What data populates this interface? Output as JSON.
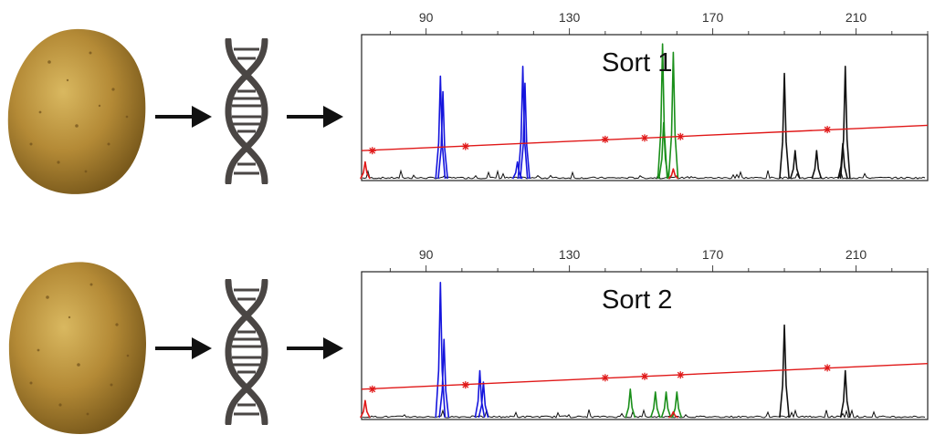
{
  "colors": {
    "blue": "#1515dd",
    "green": "#1a8f1a",
    "black": "#111111",
    "red": "#e01818",
    "ladder": "#e01818",
    "potato_light": "#c9a24a",
    "potato_dark": "#8a6a24",
    "dna": "#4a4644",
    "arrow": "#111111"
  },
  "icons": {
    "potato": "potato-icon",
    "arrow": "arrow-right-icon",
    "dna": "dna-icon"
  },
  "chart_data": [
    {
      "type": "line",
      "title": "Sort 1",
      "x_ticks": [
        90,
        130,
        170,
        210
      ],
      "xlim": [
        72,
        230
      ],
      "ylim": [
        0,
        1
      ],
      "grid": false,
      "peaks": {
        "blue": [
          [
            94,
            0.73
          ],
          [
            94.7,
            0.62
          ],
          [
            117,
            0.8
          ],
          [
            117.6,
            0.68
          ],
          [
            115.5,
            0.12
          ]
        ],
        "green": [
          [
            156,
            0.96
          ],
          [
            159,
            0.9
          ],
          [
            156.3,
            0.4
          ]
        ],
        "black": [
          [
            190,
            0.75
          ],
          [
            193,
            0.2
          ],
          [
            199,
            0.2
          ],
          [
            207,
            0.8
          ],
          [
            206.3,
            0.25
          ]
        ],
        "red": [
          [
            73,
            0.12
          ],
          [
            159,
            0.07
          ]
        ]
      },
      "ladder": {
        "line": [
          [
            72,
            0.2
          ],
          [
            230,
            0.38
          ]
        ],
        "markers": [
          [
            75,
            0.2
          ],
          [
            101,
            0.23
          ],
          [
            140,
            0.28
          ],
          [
            151,
            0.29
          ],
          [
            161,
            0.3
          ],
          [
            202,
            0.35
          ]
        ]
      }
    },
    {
      "type": "line",
      "title": "Sort 2",
      "x_ticks": [
        90,
        130,
        170,
        210
      ],
      "xlim": [
        72,
        230
      ],
      "ylim": [
        0,
        1
      ],
      "grid": false,
      "peaks": {
        "blue": [
          [
            94,
            0.95
          ],
          [
            95,
            0.55
          ],
          [
            105,
            0.33
          ],
          [
            106,
            0.25
          ]
        ],
        "green": [
          [
            147,
            0.2
          ],
          [
            154,
            0.18
          ],
          [
            157,
            0.18
          ],
          [
            160,
            0.18
          ]
        ],
        "black": [
          [
            190,
            0.65
          ],
          [
            207,
            0.33
          ]
        ],
        "red": [
          [
            73,
            0.12
          ],
          [
            159,
            0.04
          ]
        ]
      },
      "ladder": {
        "line": [
          [
            72,
            0.2
          ],
          [
            230,
            0.38
          ]
        ],
        "markers": [
          [
            75,
            0.2
          ],
          [
            101,
            0.23
          ],
          [
            140,
            0.28
          ],
          [
            151,
            0.29
          ],
          [
            161,
            0.3
          ],
          [
            202,
            0.35
          ]
        ]
      }
    }
  ]
}
